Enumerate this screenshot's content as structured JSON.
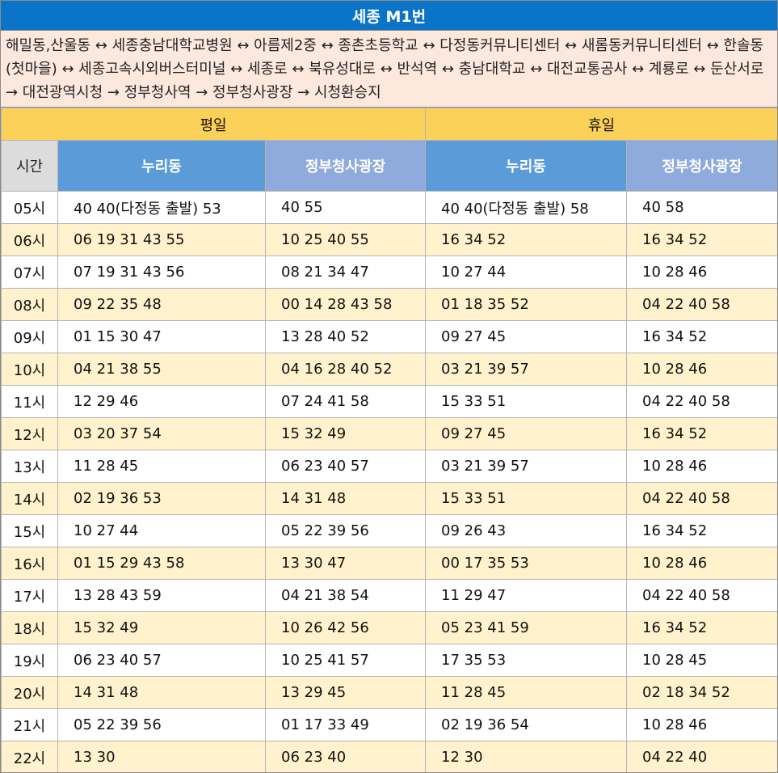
{
  "title": "세종 M1번",
  "route": "해밀동,산울동 ↔ 세종충남대학교병원 ↔ 아름제2중 ↔ 종촌초등학교 ↔ 다정동커뮤니티센터 ↔ 새롬동커뮤니티센터 ↔ 한솔동(첫마을) ↔ 세종고속시외버스터미널 ↔ 세종로 ↔ 북유성대로 ↔ 반석역 ↔ 충남대학교 ↔ 대전교통공사 ↔ 계룡로 ↔ 둔산서로 → 대전광역시청 → 정부청사역 → 정부청사광장 → 시청환승지",
  "groups": {
    "weekday": "평일",
    "holiday": "휴일"
  },
  "columns": {
    "time": "시간",
    "weekday_nuri": "누리동",
    "weekday_jeongbu": "정부청사광장",
    "holiday_nuri": "누리동",
    "holiday_jeongbu": "정부청사광장"
  },
  "rows": [
    {
      "hour": "05시",
      "wd_nuri": "40 40(다정동 출발) 53",
      "wd_jeongbu": "40 55",
      "hd_nuri": "40 40(다정동 출발) 58",
      "hd_jeongbu": "40 58"
    },
    {
      "hour": "06시",
      "wd_nuri": "06 19 31 43 55",
      "wd_jeongbu": "10 25 40 55",
      "hd_nuri": "16 34 52",
      "hd_jeongbu": "16 34 52"
    },
    {
      "hour": "07시",
      "wd_nuri": "07 19 31 43 56",
      "wd_jeongbu": "08 21 34 47",
      "hd_nuri": "10 27 44",
      "hd_jeongbu": "10 28 46"
    },
    {
      "hour": "08시",
      "wd_nuri": "09 22 35 48",
      "wd_jeongbu": "00 14 28 43 58",
      "hd_nuri": "01 18 35 52",
      "hd_jeongbu": "04 22 40 58"
    },
    {
      "hour": "09시",
      "wd_nuri": "01 15 30 47",
      "wd_jeongbu": "13 28 40 52",
      "hd_nuri": "09 27 45",
      "hd_jeongbu": "16 34 52"
    },
    {
      "hour": "10시",
      "wd_nuri": "04 21 38 55",
      "wd_jeongbu": "04 16 28 40 52",
      "hd_nuri": "03 21 39 57",
      "hd_jeongbu": "10 28 46"
    },
    {
      "hour": "11시",
      "wd_nuri": "12 29 46",
      "wd_jeongbu": "07 24 41 58",
      "hd_nuri": "15 33 51",
      "hd_jeongbu": "04 22 40 58"
    },
    {
      "hour": "12시",
      "wd_nuri": "03 20 37 54",
      "wd_jeongbu": "15 32 49",
      "hd_nuri": "09 27 45",
      "hd_jeongbu": "16 34 52"
    },
    {
      "hour": "13시",
      "wd_nuri": "11 28 45",
      "wd_jeongbu": "06 23 40 57",
      "hd_nuri": "03 21 39 57",
      "hd_jeongbu": "10 28 46"
    },
    {
      "hour": "14시",
      "wd_nuri": "02 19 36 53",
      "wd_jeongbu": "14 31 48",
      "hd_nuri": "15 33 51",
      "hd_jeongbu": "04 22 40 58"
    },
    {
      "hour": "15시",
      "wd_nuri": "10 27 44",
      "wd_jeongbu": "05 22 39 56",
      "hd_nuri": "09 26 43",
      "hd_jeongbu": "16 34 52"
    },
    {
      "hour": "16시",
      "wd_nuri": "01 15 29 43 58",
      "wd_jeongbu": "13 30 47",
      "hd_nuri": "00 17 35 53",
      "hd_jeongbu": "10 28 46"
    },
    {
      "hour": "17시",
      "wd_nuri": "13 28 43 59",
      "wd_jeongbu": "04 21 38 54",
      "hd_nuri": "11 29 47",
      "hd_jeongbu": "04 22 40 58"
    },
    {
      "hour": "18시",
      "wd_nuri": "15 32 49",
      "wd_jeongbu": "10 26 42 56",
      "hd_nuri": "05 23 41 59",
      "hd_jeongbu": "16 34 52"
    },
    {
      "hour": "19시",
      "wd_nuri": "06 23 40 57",
      "wd_jeongbu": "10 25 41 57",
      "hd_nuri": "17 35 53",
      "hd_jeongbu": "10 28 45"
    },
    {
      "hour": "20시",
      "wd_nuri": "14 31 48",
      "wd_jeongbu": "13 29 45",
      "hd_nuri": "11 28 45",
      "hd_jeongbu": "02 18 34 52"
    },
    {
      "hour": "21시",
      "wd_nuri": "05 22 39 56",
      "wd_jeongbu": "01 17 33 49",
      "hd_nuri": "02 19 36 54",
      "hd_jeongbu": "10 28 46"
    },
    {
      "hour": "22시",
      "wd_nuri": "13 30",
      "wd_jeongbu": "06 23 40",
      "hd_nuri": "12 30",
      "hd_jeongbu": "04 22 40"
    }
  ]
}
